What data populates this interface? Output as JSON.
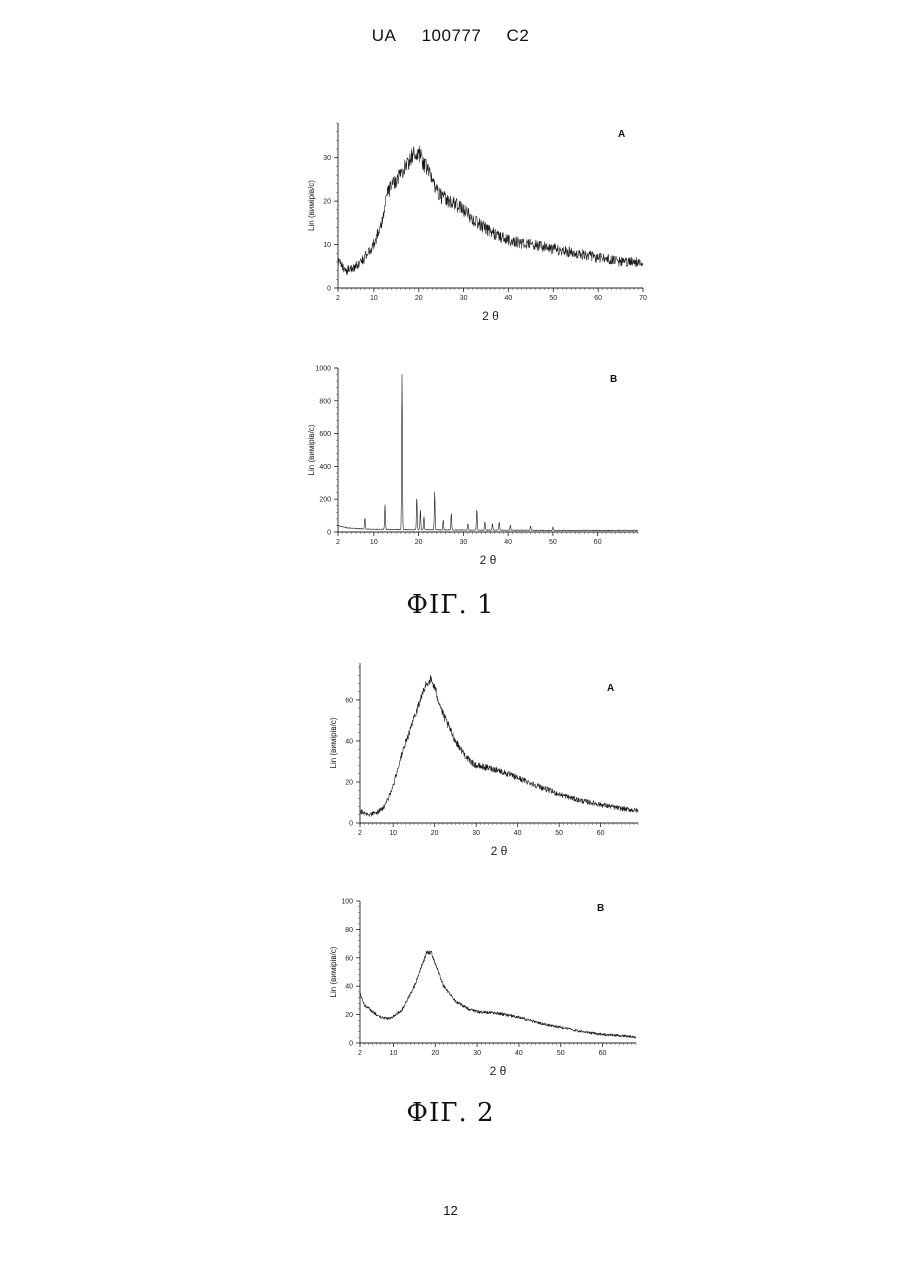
{
  "header": {
    "country": "UA",
    "number": "100777",
    "kind": "C2"
  },
  "page_number": "12",
  "figures": [
    {
      "caption": "ФІГ. 1"
    },
    {
      "caption": "ФІГ. 2"
    }
  ],
  "chart_data": [
    {
      "type": "line",
      "panel_label": "A",
      "ylabel": "Lin (вимірів/с)",
      "xlabel": "2 θ",
      "xlim": [
        2,
        70
      ],
      "ylim": [
        0,
        38
      ],
      "xticks": [
        2,
        10,
        20,
        30,
        40,
        50,
        60,
        70
      ],
      "yticks": [
        0,
        10,
        20,
        30
      ],
      "noise": 1.6,
      "series": [
        {
          "x": [
            2,
            4,
            6,
            8,
            10,
            12,
            13,
            15,
            17,
            19,
            20,
            21,
            23,
            25,
            27,
            30,
            33,
            36,
            40,
            45,
            50,
            55,
            60,
            65,
            70
          ],
          "y": [
            6,
            4,
            5,
            7,
            10,
            16,
            22,
            25,
            28,
            31,
            31,
            29,
            25,
            21,
            20,
            18,
            15,
            13,
            11,
            10,
            9,
            8,
            7,
            6,
            6
          ]
        }
      ]
    },
    {
      "type": "line",
      "panel_label": "B",
      "ylabel": "Lin (вимірів/с)",
      "xlabel": "2 θ",
      "xlim": [
        2,
        69
      ],
      "ylim": [
        0,
        1000
      ],
      "xticks": [
        2,
        10,
        20,
        30,
        40,
        50,
        60
      ],
      "yticks": [
        0,
        200,
        400,
        600,
        800,
        1000
      ],
      "noise": 2,
      "baseline": {
        "x": [
          2,
          4,
          8,
          15,
          30,
          50,
          69
        ],
        "y": [
          40,
          25,
          18,
          15,
          12,
          10,
          10
        ]
      },
      "peaks": [
        {
          "x": 8.0,
          "y": 70
        },
        {
          "x": 12.5,
          "y": 150
        },
        {
          "x": 16.3,
          "y": 950
        },
        {
          "x": 19.6,
          "y": 200
        },
        {
          "x": 20.4,
          "y": 120
        },
        {
          "x": 21.2,
          "y": 80
        },
        {
          "x": 23.6,
          "y": 230
        },
        {
          "x": 25.5,
          "y": 60
        },
        {
          "x": 27.3,
          "y": 100
        },
        {
          "x": 31.0,
          "y": 40
        },
        {
          "x": 33.0,
          "y": 130
        },
        {
          "x": 34.8,
          "y": 50
        },
        {
          "x": 36.5,
          "y": 40
        },
        {
          "x": 38.0,
          "y": 50
        },
        {
          "x": 40.5,
          "y": 30
        },
        {
          "x": 45.0,
          "y": 25
        },
        {
          "x": 50.0,
          "y": 20
        }
      ]
    },
    {
      "type": "line",
      "panel_label": "A",
      "ylabel": "Lin (вимірів/с)",
      "xlabel": "2 θ",
      "xlim": [
        2,
        69
      ],
      "ylim": [
        0,
        78
      ],
      "xticks": [
        2,
        10,
        20,
        30,
        40,
        50,
        60
      ],
      "yticks": [
        0,
        20,
        40,
        60
      ],
      "noise": 1.8,
      "series": [
        {
          "x": [
            2,
            4,
            6,
            8,
            10,
            12,
            14,
            16,
            18,
            19,
            20,
            22,
            25,
            28,
            30,
            35,
            40,
            45,
            50,
            55,
            60,
            65,
            69
          ],
          "y": [
            6,
            4,
            5,
            8,
            18,
            33,
            45,
            57,
            68,
            70,
            66,
            53,
            40,
            31,
            28,
            26,
            22,
            18,
            14,
            11,
            9,
            7,
            6
          ]
        }
      ]
    },
    {
      "type": "line",
      "panel_label": "B",
      "ylabel": "Lin (вимірів/с)",
      "xlabel": "2 θ",
      "xlim": [
        2,
        68
      ],
      "ylim": [
        0,
        100
      ],
      "xticks": [
        2,
        10,
        20,
        30,
        40,
        50,
        60
      ],
      "yticks": [
        0,
        20,
        40,
        60,
        80,
        100
      ],
      "noise": 1.4,
      "series": [
        {
          "x": [
            2,
            3,
            5,
            7,
            9,
            12,
            15,
            17,
            18,
            19,
            20,
            22,
            25,
            28,
            30,
            35,
            40,
            45,
            50,
            55,
            60,
            65,
            68
          ],
          "y": [
            35,
            27,
            22,
            18,
            17,
            23,
            40,
            56,
            64,
            64,
            56,
            40,
            29,
            24,
            22,
            21,
            18,
            14,
            11,
            8,
            6,
            5,
            4
          ]
        }
      ]
    }
  ]
}
